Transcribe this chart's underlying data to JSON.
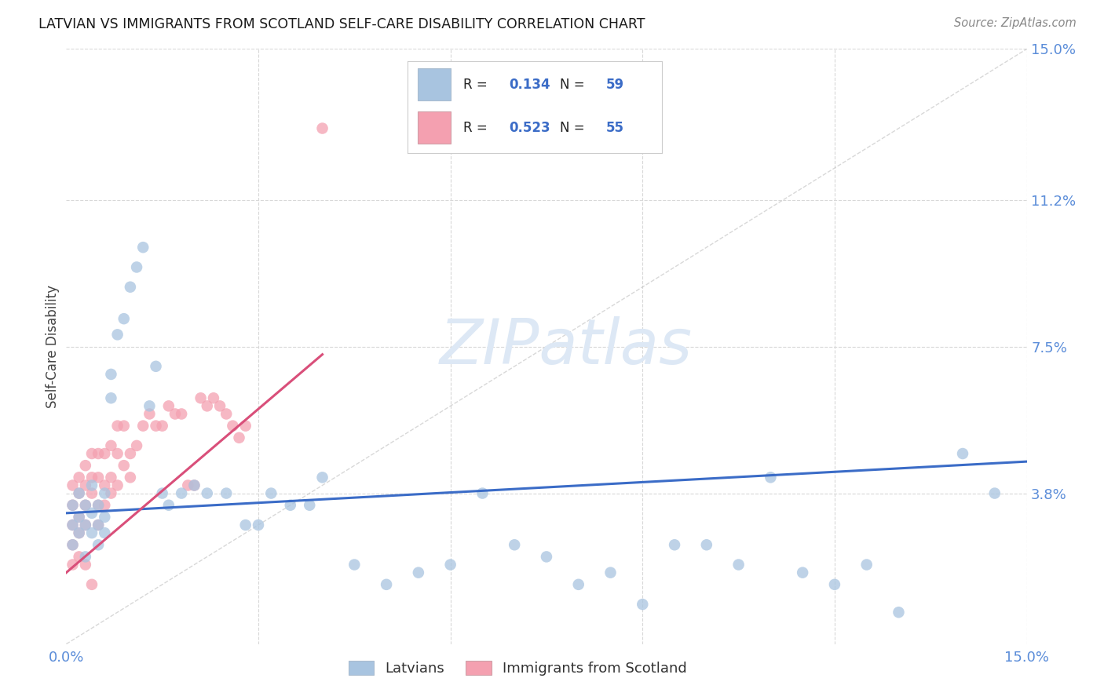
{
  "title": "LATVIAN VS IMMIGRANTS FROM SCOTLAND SELF-CARE DISABILITY CORRELATION CHART",
  "source": "Source: ZipAtlas.com",
  "ylabel": "Self-Care Disability",
  "xlim": [
    0.0,
    0.15
  ],
  "ylim": [
    0.0,
    0.15
  ],
  "ytick_values": [
    0.0,
    0.038,
    0.075,
    0.112,
    0.15
  ],
  "ytick_labels": [
    "",
    "3.8%",
    "7.5%",
    "11.2%",
    "15.0%"
  ],
  "xtick_values": [
    0.0,
    0.03,
    0.06,
    0.09,
    0.12,
    0.15
  ],
  "xtick_labels": [
    "0.0%",
    "",
    "",
    "",
    "",
    "15.0%"
  ],
  "legend_latvians_R": "0.134",
  "legend_latvians_N": "59",
  "legend_scotland_R": "0.523",
  "legend_scotland_N": "55",
  "latvian_color": "#a8c4e0",
  "scotland_color": "#f4a0b0",
  "trend_latvian_color": "#3b6cc7",
  "trend_scotland_color": "#d94f7a",
  "diagonal_color": "#c8c8c8",
  "watermark": "ZIPatlas",
  "latvian_x": [
    0.001,
    0.001,
    0.001,
    0.002,
    0.002,
    0.002,
    0.003,
    0.003,
    0.003,
    0.004,
    0.004,
    0.004,
    0.005,
    0.005,
    0.005,
    0.006,
    0.006,
    0.006,
    0.007,
    0.007,
    0.008,
    0.009,
    0.01,
    0.011,
    0.012,
    0.013,
    0.014,
    0.015,
    0.016,
    0.018,
    0.02,
    0.022,
    0.025,
    0.028,
    0.03,
    0.032,
    0.035,
    0.038,
    0.04,
    0.045,
    0.05,
    0.055,
    0.06,
    0.065,
    0.07,
    0.075,
    0.08,
    0.085,
    0.09,
    0.095,
    0.1,
    0.105,
    0.11,
    0.115,
    0.12,
    0.125,
    0.13,
    0.14,
    0.145
  ],
  "latvian_y": [
    0.03,
    0.025,
    0.035,
    0.028,
    0.032,
    0.038,
    0.03,
    0.035,
    0.022,
    0.028,
    0.033,
    0.04,
    0.025,
    0.03,
    0.035,
    0.028,
    0.032,
    0.038,
    0.062,
    0.068,
    0.078,
    0.082,
    0.09,
    0.095,
    0.1,
    0.06,
    0.07,
    0.038,
    0.035,
    0.038,
    0.04,
    0.038,
    0.038,
    0.03,
    0.03,
    0.038,
    0.035,
    0.035,
    0.042,
    0.02,
    0.015,
    0.018,
    0.02,
    0.038,
    0.025,
    0.022,
    0.015,
    0.018,
    0.01,
    0.025,
    0.025,
    0.02,
    0.042,
    0.018,
    0.015,
    0.02,
    0.008,
    0.048,
    0.038
  ],
  "scotland_x": [
    0.001,
    0.001,
    0.001,
    0.001,
    0.001,
    0.002,
    0.002,
    0.002,
    0.002,
    0.002,
    0.003,
    0.003,
    0.003,
    0.003,
    0.003,
    0.004,
    0.004,
    0.004,
    0.004,
    0.005,
    0.005,
    0.005,
    0.005,
    0.006,
    0.006,
    0.006,
    0.007,
    0.007,
    0.007,
    0.008,
    0.008,
    0.008,
    0.009,
    0.009,
    0.01,
    0.01,
    0.011,
    0.012,
    0.013,
    0.014,
    0.015,
    0.016,
    0.017,
    0.018,
    0.019,
    0.02,
    0.021,
    0.022,
    0.023,
    0.024,
    0.025,
    0.026,
    0.027,
    0.028,
    0.04
  ],
  "scotland_y": [
    0.03,
    0.025,
    0.035,
    0.02,
    0.04,
    0.028,
    0.032,
    0.038,
    0.042,
    0.022,
    0.03,
    0.035,
    0.04,
    0.045,
    0.02,
    0.038,
    0.042,
    0.048,
    0.015,
    0.03,
    0.035,
    0.042,
    0.048,
    0.035,
    0.04,
    0.048,
    0.038,
    0.042,
    0.05,
    0.04,
    0.048,
    0.055,
    0.045,
    0.055,
    0.042,
    0.048,
    0.05,
    0.055,
    0.058,
    0.055,
    0.055,
    0.06,
    0.058,
    0.058,
    0.04,
    0.04,
    0.062,
    0.06,
    0.062,
    0.06,
    0.058,
    0.055,
    0.052,
    0.055,
    0.13
  ],
  "trend_latvian_x0": 0.0,
  "trend_latvian_y0": 0.033,
  "trend_latvian_x1": 0.15,
  "trend_latvian_y1": 0.046,
  "trend_scotland_x0": 0.0,
  "trend_scotland_y0": 0.018,
  "trend_scotland_x1": 0.04,
  "trend_scotland_y1": 0.073
}
